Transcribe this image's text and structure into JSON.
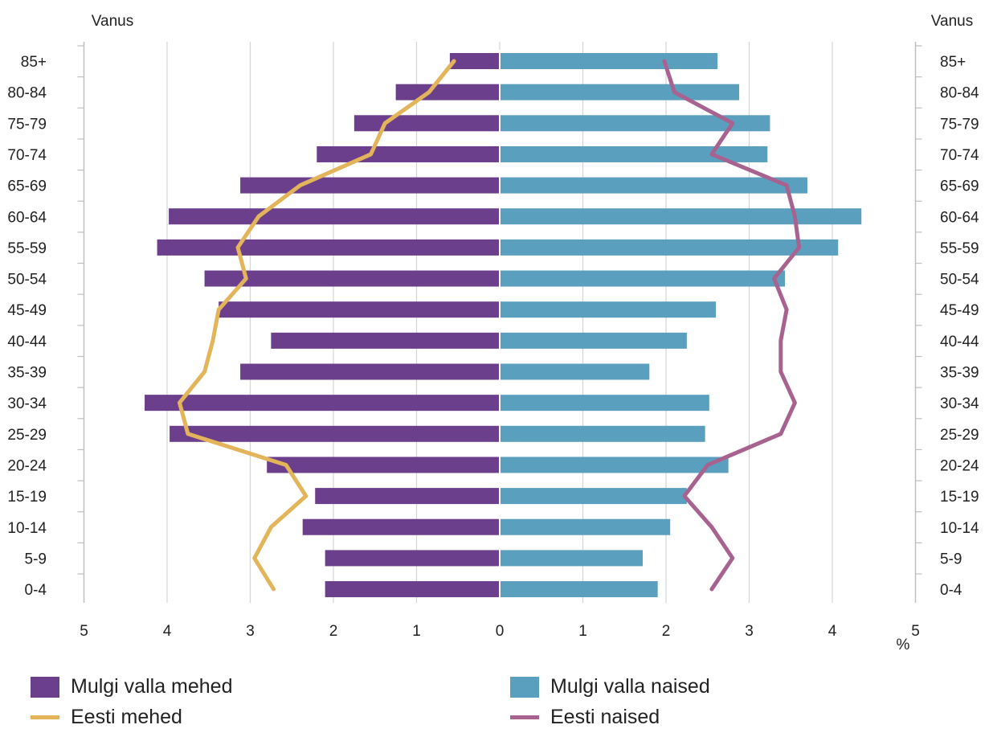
{
  "chart_data": {
    "type": "bar",
    "subtype": "population-pyramid",
    "title": "",
    "y_axis_title_left": "Vanus",
    "y_axis_title_right": "Vanus",
    "x_unit": "%",
    "xlim": [
      -5,
      5
    ],
    "x_ticks": [
      -5,
      -4,
      -3,
      -2,
      -1,
      0,
      1,
      2,
      3,
      4,
      5
    ],
    "x_tick_labels": [
      "5",
      "4",
      "3",
      "2",
      "1",
      "0",
      "1",
      "2",
      "3",
      "4",
      "5"
    ],
    "grid": true,
    "legend_position": "bottom",
    "categories": [
      "85+",
      "80-84",
      "75-79",
      "70-74",
      "65-69",
      "60-64",
      "55-59",
      "50-54",
      "45-49",
      "40-44",
      "35-39",
      "30-34",
      "25-29",
      "20-24",
      "15-19",
      "10-14",
      "5-9",
      "0-4"
    ],
    "series": [
      {
        "name": "Mulgi valla mehed",
        "kind": "bar",
        "side": "left",
        "color": "#6b3f8c",
        "values": [
          0.6,
          1.25,
          1.75,
          2.2,
          3.12,
          3.98,
          4.12,
          3.55,
          3.38,
          2.75,
          3.12,
          4.27,
          3.97,
          2.8,
          2.22,
          2.37,
          2.1,
          2.1
        ]
      },
      {
        "name": "Mulgi valla naised",
        "kind": "bar",
        "side": "right",
        "color": "#5b9fbf",
        "values": [
          2.62,
          2.88,
          3.25,
          3.22,
          3.7,
          4.35,
          4.07,
          3.43,
          2.6,
          2.25,
          1.8,
          2.52,
          2.47,
          2.75,
          2.25,
          2.05,
          1.72,
          1.9
        ]
      },
      {
        "name": "Eesti mehed",
        "kind": "line",
        "side": "left",
        "color": "#e3b45a",
        "values": [
          0.55,
          0.85,
          1.38,
          1.55,
          2.4,
          2.9,
          3.15,
          3.05,
          3.38,
          3.45,
          3.55,
          3.85,
          3.75,
          2.57,
          2.33,
          2.75,
          2.95,
          2.72
        ]
      },
      {
        "name": "Eesti naised",
        "kind": "line",
        "side": "right",
        "color": "#a8628f",
        "values": [
          1.98,
          2.1,
          2.8,
          2.55,
          3.45,
          3.55,
          3.6,
          3.3,
          3.45,
          3.38,
          3.38,
          3.55,
          3.38,
          2.5,
          2.22,
          2.55,
          2.8,
          2.55
        ]
      }
    ]
  }
}
